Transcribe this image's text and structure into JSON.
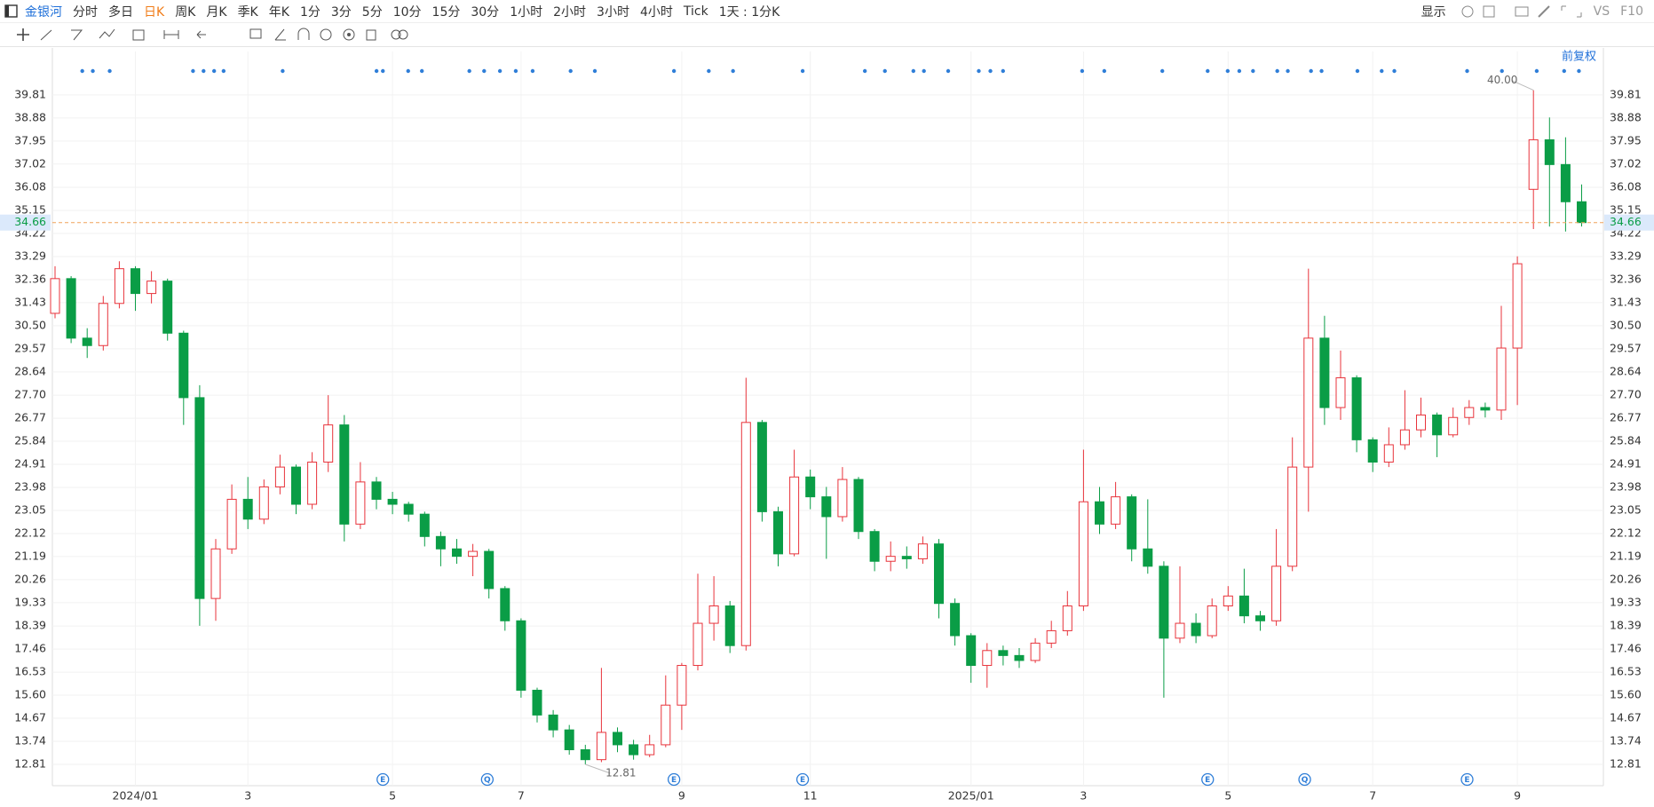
{
  "toolbar": {
    "symbol": "金银河",
    "periods": [
      "分时",
      "多日",
      "日K",
      "周K",
      "月K",
      "季K",
      "年K",
      "1分",
      "3分",
      "5分",
      "10分",
      "15分",
      "30分",
      "1小时",
      "2小时",
      "3小时",
      "4小时",
      "Tick",
      "1天 : 1分K"
    ],
    "display": "显示",
    "vs": "VS",
    "f10": "F10"
  },
  "chart_data": {
    "type": "candlestick",
    "adjust_label": "前复权",
    "categories": [
      null,
      null,
      null,
      null,
      null,
      "2024/01",
      null,
      null,
      null,
      null,
      null,
      null,
      "3",
      null,
      null,
      null,
      null,
      null,
      null,
      null,
      null,
      "5",
      null,
      null,
      null,
      null,
      null,
      null,
      null,
      "7",
      null,
      null,
      null,
      null,
      null,
      null,
      null,
      null,
      null,
      "9",
      null,
      null,
      null,
      null,
      null,
      null,
      null,
      "11",
      null,
      null,
      null,
      null,
      null,
      null,
      null,
      null,
      null,
      "2025/01",
      null,
      null,
      null,
      null,
      null,
      null,
      "3",
      null,
      null,
      null,
      null,
      null,
      null,
      null,
      null,
      "5",
      null,
      null,
      null,
      null,
      null,
      null,
      null,
      null,
      "7",
      null,
      null,
      null,
      null,
      null,
      null,
      null,
      null,
      "9",
      null,
      null,
      null,
      null
    ],
    "open": [
      31.0,
      32.4,
      30.0,
      29.7,
      31.4,
      32.8,
      31.8,
      32.3,
      30.2,
      27.6,
      19.5,
      21.5,
      23.5,
      22.7,
      24.0,
      24.8,
      23.3,
      25.0,
      26.5,
      22.5,
      24.2,
      23.5,
      23.3,
      22.9,
      22.0,
      21.5,
      21.2,
      21.4,
      19.9,
      18.6,
      15.8,
      14.8,
      14.2,
      13.4,
      13.0,
      14.1,
      13.6,
      13.2,
      13.6,
      15.2,
      16.8,
      18.5,
      19.2,
      17.6,
      26.6,
      23.0,
      21.3,
      24.4,
      23.6,
      22.8,
      24.3,
      22.2,
      21.0,
      21.2,
      21.1,
      21.7,
      19.3,
      18.0,
      16.8,
      17.4,
      17.2,
      17.0,
      17.7,
      18.2,
      19.2,
      23.4,
      22.5,
      23.6,
      21.5,
      20.8,
      17.9,
      18.5,
      18.0,
      19.2,
      19.6,
      18.8,
      18.6,
      20.8,
      24.8,
      30.0,
      27.2,
      28.4,
      25.9,
      25.0,
      25.7,
      26.3,
      26.9,
      26.1,
      26.8,
      27.2,
      27.1,
      29.6,
      36.0,
      38.0,
      37.0,
      35.5
    ],
    "high": [
      32.9,
      32.5,
      30.4,
      31.7,
      33.1,
      32.9,
      32.7,
      32.4,
      30.3,
      28.1,
      21.9,
      24.1,
      24.4,
      24.3,
      25.3,
      24.9,
      25.4,
      27.7,
      26.9,
      25.0,
      24.4,
      23.8,
      23.4,
      23.0,
      22.2,
      21.9,
      21.7,
      21.5,
      20.0,
      18.7,
      15.9,
      15.0,
      14.4,
      13.6,
      16.7,
      14.3,
      13.8,
      14.0,
      16.4,
      16.9,
      20.5,
      20.4,
      19.4,
      28.4,
      26.7,
      23.2,
      25.5,
      24.7,
      24.0,
      24.8,
      24.4,
      22.3,
      21.8,
      21.6,
      22.0,
      21.9,
      19.5,
      18.1,
      17.7,
      17.6,
      17.5,
      17.9,
      18.6,
      19.8,
      25.5,
      24.0,
      24.2,
      23.7,
      23.5,
      21.0,
      20.8,
      18.9,
      19.5,
      20.0,
      20.7,
      19.0,
      22.3,
      26.0,
      32.8,
      30.9,
      29.5,
      28.5,
      26.0,
      26.4,
      27.9,
      27.6,
      27.0,
      27.2,
      27.5,
      27.4,
      31.3,
      33.3,
      40.0,
      38.9,
      38.1,
      36.2
    ],
    "low": [
      30.8,
      29.8,
      29.2,
      29.5,
      31.2,
      31.1,
      31.4,
      29.9,
      26.5,
      18.4,
      18.6,
      21.3,
      22.3,
      22.5,
      23.7,
      22.9,
      23.1,
      24.6,
      21.8,
      22.3,
      23.1,
      22.9,
      22.6,
      21.6,
      20.8,
      20.9,
      20.4,
      19.5,
      18.2,
      15.5,
      14.5,
      13.9,
      13.2,
      12.81,
      12.9,
      13.3,
      13.0,
      13.1,
      13.5,
      14.2,
      16.6,
      17.8,
      17.3,
      17.4,
      22.6,
      20.8,
      21.2,
      23.1,
      21.1,
      22.6,
      21.9,
      20.6,
      20.6,
      20.7,
      20.9,
      18.7,
      17.6,
      16.1,
      15.9,
      16.8,
      16.7,
      16.9,
      17.5,
      18.0,
      19.0,
      22.1,
      22.3,
      21.0,
      20.5,
      15.5,
      17.7,
      17.7,
      17.9,
      19.0,
      18.5,
      18.2,
      18.4,
      20.6,
      23.0,
      26.5,
      26.7,
      25.4,
      24.6,
      24.8,
      25.5,
      26.0,
      25.2,
      26.0,
      26.5,
      26.8,
      26.7,
      27.3,
      34.4,
      34.5,
      34.3,
      34.5
    ],
    "close": [
      32.4,
      30.0,
      29.7,
      31.4,
      32.8,
      31.8,
      32.3,
      30.2,
      27.6,
      19.5,
      21.5,
      23.5,
      22.7,
      24.0,
      24.8,
      23.3,
      25.0,
      26.5,
      22.5,
      24.2,
      23.5,
      23.3,
      22.9,
      22.0,
      21.5,
      21.2,
      21.4,
      19.9,
      18.6,
      15.8,
      14.8,
      14.2,
      13.4,
      13.0,
      14.1,
      13.6,
      13.2,
      13.6,
      15.2,
      16.8,
      18.5,
      19.2,
      17.6,
      26.6,
      23.0,
      21.3,
      24.4,
      23.6,
      22.8,
      24.3,
      22.2,
      21.0,
      21.2,
      21.1,
      21.7,
      19.3,
      18.0,
      16.8,
      17.4,
      17.2,
      17.0,
      17.7,
      18.2,
      19.2,
      23.4,
      22.5,
      23.6,
      21.5,
      20.8,
      17.9,
      18.5,
      18.0,
      19.2,
      19.6,
      18.8,
      18.6,
      20.8,
      24.8,
      30.0,
      27.2,
      28.4,
      25.9,
      25.0,
      25.7,
      26.3,
      26.9,
      26.1,
      26.8,
      27.2,
      27.1,
      29.6,
      33.0,
      38.0,
      37.0,
      35.5,
      34.66
    ],
    "up_color": "#e8333b",
    "down_color": "#0a9d46",
    "ylim": [
      11.95,
      41.56
    ],
    "yticks": [
      12.81,
      13.74,
      14.67,
      {
        "value": 15.6,
        "label": "15.60"
      },
      16.53,
      17.46,
      18.39,
      19.33,
      20.26,
      21.19,
      22.12,
      23.05,
      23.98,
      24.91,
      25.84,
      26.77,
      {
        "value": 27.7,
        "label": "27.70"
      },
      28.64,
      29.57,
      {
        "value": 30.5,
        "label": "30.50"
      },
      31.43,
      32.36,
      33.29,
      34.22,
      35.15,
      36.08,
      37.02,
      37.95,
      38.88,
      39.81
    ],
    "grid": true,
    "last_price": 34.66,
    "annotations": [
      {
        "value": 40,
        "label": "40.00"
      },
      {
        "value": 12.81,
        "label": "12.81"
      }
    ],
    "events": [
      "E",
      "Q",
      "E",
      "E",
      "E",
      "Q",
      "E"
    ]
  }
}
